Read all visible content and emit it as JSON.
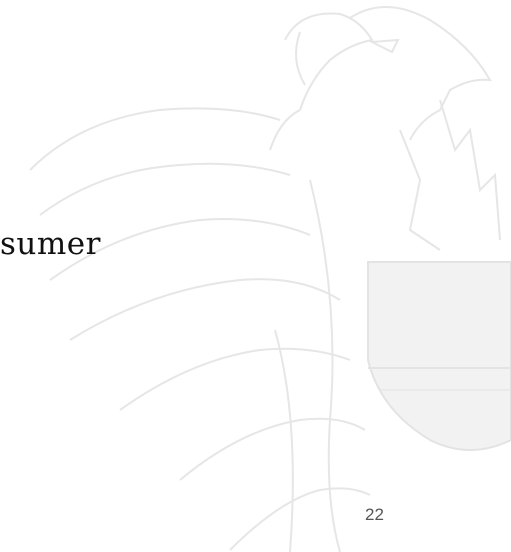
{
  "body": {
    "text": "sumer"
  },
  "footer": {
    "page_number": "22"
  }
}
